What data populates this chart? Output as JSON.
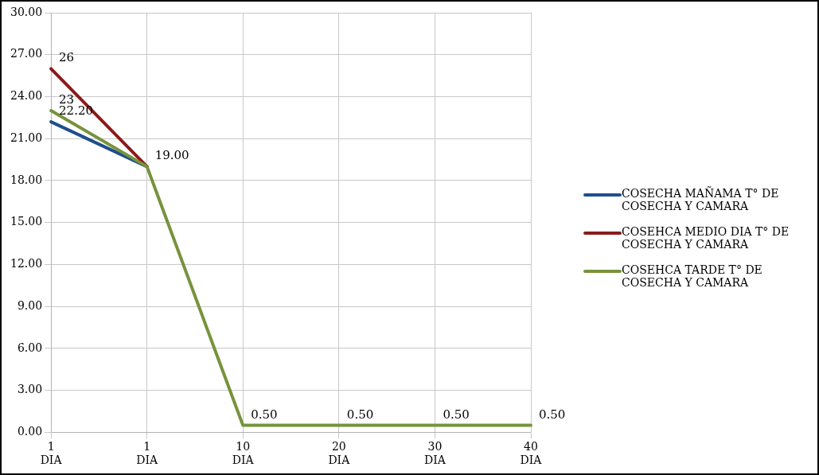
{
  "chart_data": {
    "type": "line",
    "categories": [
      "1\nDIA",
      "1\nDIA",
      "10\nDIA",
      "20\nDIA",
      "30\nDIA",
      "40\nDIA"
    ],
    "series": [
      {
        "name": "COSECHA MAÑAMA  T° DE COSECHA Y CAMARA",
        "color": "#1f4e8c",
        "values": [
          22.2,
          19,
          null,
          null,
          null,
          null
        ],
        "value_labels": [
          "22.20",
          null,
          null,
          null,
          null,
          null
        ]
      },
      {
        "name": "COSEHCA MEDIO DIA T° DE COSECHA Y CAMARA",
        "color": "#8b1a1a",
        "values": [
          26,
          19,
          null,
          null,
          null,
          null
        ],
        "value_labels": [
          "26",
          null,
          null,
          null,
          null,
          null
        ]
      },
      {
        "name": "COSEHCA TARDE T° DE COSECHA Y CAMARA",
        "color": "#77933c",
        "values": [
          23,
          19,
          0.5,
          0.5,
          0.5,
          0.5
        ],
        "value_labels": [
          "23",
          "19.00",
          "0.50",
          "0.50",
          "0.50",
          "0.50"
        ]
      }
    ],
    "ylim": [
      0,
      30
    ],
    "yticks": [
      {
        "value": 0,
        "label": "0.00"
      },
      {
        "value": 3,
        "label": "3.00"
      },
      {
        "value": 6,
        "label": "6.00"
      },
      {
        "value": 9,
        "label": "9.00"
      },
      {
        "value": 12,
        "label": "12.00"
      },
      {
        "value": 15,
        "label": "15.00"
      },
      {
        "value": 18,
        "label": "18.00"
      },
      {
        "value": 21,
        "label": "21.00"
      },
      {
        "value": 24,
        "label": "24.00"
      },
      {
        "value": 27,
        "label": "27.00"
      },
      {
        "value": 30,
        "label": "30.00"
      }
    ],
    "grid": true,
    "legend": "right",
    "marker": "none",
    "line_style": "solid"
  }
}
